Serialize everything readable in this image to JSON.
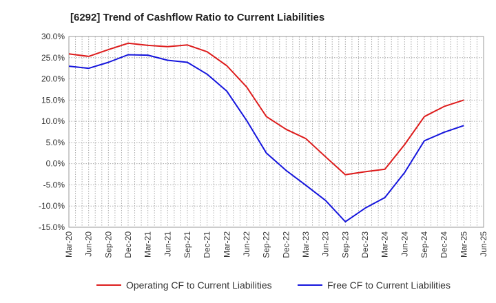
{
  "chart_data": {
    "type": "line",
    "title": "[6292]  Trend of Cashflow Ratio to Current Liabilities",
    "xlabel": "",
    "ylabel": "",
    "ylim": [
      -15,
      30
    ],
    "y_ticks": [
      "30.0%",
      "25.0%",
      "20.0%",
      "15.0%",
      "10.0%",
      "5.0%",
      "0.0%",
      "-5.0%",
      "-10.0%",
      "-15.0%"
    ],
    "y_tick_values": [
      30,
      25,
      20,
      15,
      10,
      5,
      0,
      -5,
      -10,
      -15
    ],
    "categories": [
      "Mar-20",
      "Jun-20",
      "Sep-20",
      "Dec-20",
      "Mar-21",
      "Jun-21",
      "Sep-21",
      "Dec-21",
      "Mar-22",
      "Jun-22",
      "Sep-22",
      "Dec-22",
      "Mar-23",
      "Jun-23",
      "Sep-23",
      "Dec-23",
      "Mar-24",
      "Jun-24",
      "Sep-24",
      "Dec-24",
      "Mar-25",
      "Jun-25"
    ],
    "grid": true,
    "legend_position": "bottom",
    "series": [
      {
        "name": "Operating CF to Current Liabilities",
        "color": "#dd1c1c",
        "values": [
          25.9,
          25.3,
          26.9,
          28.4,
          27.9,
          27.6,
          28.0,
          26.4,
          23.1,
          18.1,
          11.1,
          8.1,
          5.9,
          1.6,
          -2.6,
          -1.9,
          -1.3,
          4.5,
          11.1,
          13.5,
          15.0,
          null
        ]
      },
      {
        "name": "Free CF to Current Liabilities",
        "color": "#1515dd",
        "values": [
          23.0,
          22.5,
          23.9,
          25.7,
          25.6,
          24.4,
          23.9,
          21.1,
          17.1,
          10.2,
          2.5,
          -1.6,
          -5.1,
          -8.7,
          -13.7,
          -10.5,
          -8.0,
          -2.1,
          5.4,
          7.4,
          9.0,
          null
        ]
      }
    ]
  }
}
